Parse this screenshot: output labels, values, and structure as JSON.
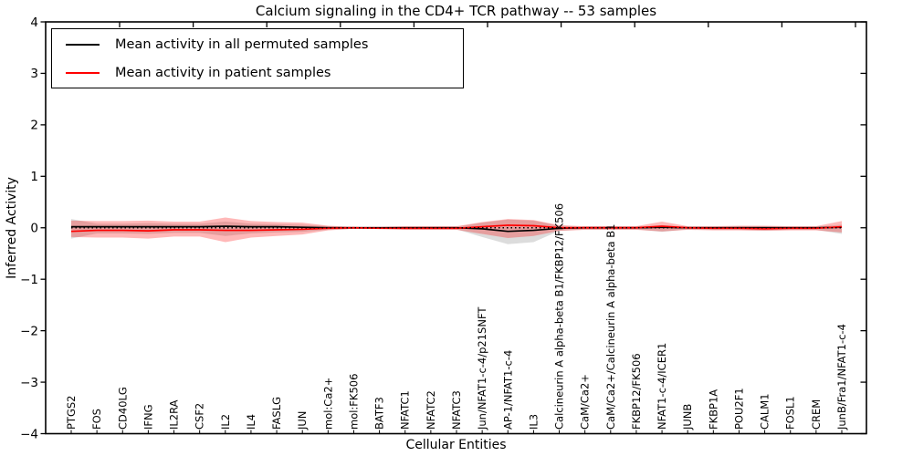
{
  "title": "Calcium signaling in the CD4+ TCR pathway -- 53 samples",
  "legend": {
    "items": [
      {
        "label": "Mean activity in all permuted samples",
        "color": "#000000"
      },
      {
        "label": "Mean activity in patient samples",
        "color": "#ff0000"
      }
    ]
  },
  "chart_data": {
    "type": "line",
    "title": "Calcium signaling in the CD4+ TCR pathway -- 53 samples",
    "xlabel": "Cellular Entities",
    "ylabel": "Inferred Activity",
    "ylim": [
      -4,
      4
    ],
    "yticks": [
      4,
      3,
      2,
      1,
      0,
      -1,
      -2,
      -3,
      -4
    ],
    "grid": false,
    "legend_position": "upper left",
    "zero_reference_line": {
      "style": "dotted",
      "color": "#000000",
      "y": 0
    },
    "categories": [
      "PTGS2",
      "FOS",
      "CD40LG",
      "IFNG",
      "IL2RA",
      "CSF2",
      "IL2",
      "IL4",
      "FASLG",
      "JUN",
      "mol:Ca2+",
      "mol:FK506",
      "BATF3",
      "NFATC1",
      "NFATC2",
      "NFATC3",
      "Jun/NFAT1-c-4/p21SNFT",
      "AP-1/NFAT1-c-4",
      "IL3",
      "Calcineurin A alpha-beta B1/FKBP12/FK506",
      "CaM/Ca2+",
      "CaM/Ca2+/Calcineurin A alpha-beta B1",
      "FKBP12/FK506",
      "NFAT1-c-4/ICER1",
      "JUNB",
      "FKBP1A",
      "POU2F1",
      "CALM1",
      "FOSL1",
      "CREM",
      "JunB/Fra1/NFAT1-c-4"
    ],
    "series": [
      {
        "name": "Mean activity in all permuted samples",
        "color": "#000000",
        "style": "solid",
        "values": [
          0.02,
          0.02,
          0.02,
          0.02,
          0.02,
          0.02,
          0.03,
          0.02,
          0.02,
          0.01,
          0.0,
          0.0,
          0.0,
          0.0,
          0.0,
          0.0,
          -0.02,
          -0.07,
          -0.05,
          -0.01,
          0.0,
          0.0,
          0.0,
          0.01,
          0.0,
          0.0,
          0.0,
          0.0,
          0.0,
          0.0,
          0.01
        ]
      },
      {
        "name": "Mean activity in patient samples",
        "color": "#ff0000",
        "style": "solid",
        "values": [
          -0.07,
          -0.05,
          -0.05,
          -0.06,
          -0.04,
          -0.04,
          -0.05,
          -0.05,
          -0.04,
          -0.03,
          -0.01,
          0.0,
          -0.01,
          -0.01,
          -0.01,
          -0.01,
          0.02,
          0.05,
          0.04,
          0.0,
          0.0,
          0.0,
          0.0,
          0.03,
          0.0,
          -0.01,
          -0.01,
          -0.02,
          -0.01,
          -0.01,
          0.02
        ]
      }
    ],
    "bands": [
      {
        "name": "permuted samples std band",
        "color": "#808080",
        "alpha": 0.28,
        "upper": [
          0.17,
          0.08,
          0.08,
          0.09,
          0.08,
          0.08,
          0.12,
          0.08,
          0.07,
          0.06,
          0.03,
          0.01,
          0.01,
          0.02,
          0.02,
          0.02,
          0.1,
          0.16,
          0.14,
          0.04,
          0.02,
          0.02,
          0.02,
          0.05,
          0.02,
          0.02,
          0.03,
          0.03,
          0.02,
          0.02,
          0.06
        ],
        "lower": [
          -0.21,
          -0.11,
          -0.11,
          -0.12,
          -0.1,
          -0.1,
          -0.16,
          -0.11,
          -0.09,
          -0.08,
          -0.04,
          -0.02,
          -0.02,
          -0.03,
          -0.03,
          -0.03,
          -0.18,
          -0.32,
          -0.28,
          -0.06,
          -0.03,
          -0.03,
          -0.03,
          -0.08,
          -0.03,
          -0.04,
          -0.04,
          -0.05,
          -0.04,
          -0.04,
          -0.12
        ]
      },
      {
        "name": "patient samples std band",
        "color": "#ff0000",
        "alpha": 0.28,
        "upper": [
          0.14,
          0.13,
          0.13,
          0.14,
          0.12,
          0.12,
          0.2,
          0.13,
          0.11,
          0.1,
          0.04,
          0.02,
          0.02,
          0.03,
          0.03,
          0.03,
          0.11,
          0.17,
          0.15,
          0.05,
          0.03,
          0.03,
          0.03,
          0.12,
          0.03,
          0.03,
          0.04,
          0.04,
          0.03,
          0.03,
          0.13
        ],
        "lower": [
          -0.18,
          -0.19,
          -0.19,
          -0.21,
          -0.17,
          -0.17,
          -0.28,
          -0.19,
          -0.16,
          -0.13,
          -0.05,
          -0.02,
          -0.02,
          -0.04,
          -0.04,
          -0.04,
          -0.12,
          -0.2,
          -0.16,
          -0.06,
          -0.04,
          -0.04,
          -0.04,
          -0.07,
          -0.04,
          -0.05,
          -0.05,
          -0.06,
          -0.05,
          -0.05,
          -0.09
        ]
      }
    ]
  }
}
